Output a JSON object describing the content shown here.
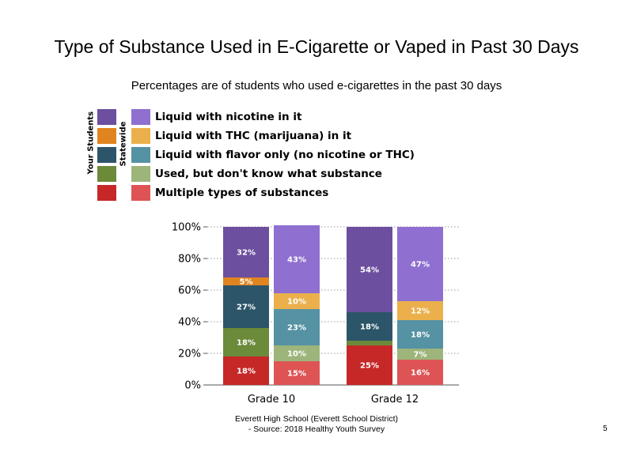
{
  "chart_data": {
    "type": "bar",
    "stacked": true,
    "title": "Type of Substance Used in E-Cigarette or Vaped in Past 30 Days",
    "subtitle": "Percentages are of students who used e-cigarettes in the past 30 days",
    "ylim": [
      0,
      100
    ],
    "yticks": [
      "0%",
      "20%",
      "40%",
      "60%",
      "80%",
      "100%"
    ],
    "grid": true,
    "legend_position": "top-left",
    "legend_group_labels": [
      "Your Students",
      "Statewide"
    ],
    "categories": [
      "Grade 10",
      "Grade 12"
    ],
    "groups": [
      "Your Students",
      "Statewide"
    ],
    "series": [
      {
        "name": "Multiple types of substances",
        "colors": [
          "#c62828",
          "#de5454"
        ],
        "values": [
          [
            18,
            15
          ],
          [
            25,
            16
          ]
        ],
        "labels": [
          [
            "18%",
            "15%"
          ],
          [
            "25%",
            "16%"
          ]
        ]
      },
      {
        "name": "Used, but don't know what substance",
        "colors": [
          "#6b8a3a",
          "#9db57b"
        ],
        "values": [
          [
            18,
            10
          ],
          [
            3,
            7
          ]
        ],
        "labels": [
          [
            "18%",
            "10%"
          ],
          [
            "",
            "7%"
          ]
        ]
      },
      {
        "name": "Liquid with flavor only (no nicotine or THC)",
        "colors": [
          "#2c5569",
          "#5592a3"
        ],
        "values": [
          [
            27,
            23
          ],
          [
            18,
            18
          ]
        ],
        "labels": [
          [
            "27%",
            "23%"
          ],
          [
            "18%",
            "18%"
          ]
        ]
      },
      {
        "name": "Liquid with THC (marijuana) in it",
        "colors": [
          "#e0841f",
          "#ebb04c"
        ],
        "values": [
          [
            5,
            10
          ],
          [
            0,
            12
          ]
        ],
        "labels": [
          [
            "5%",
            "10%"
          ],
          [
            "",
            "12%"
          ]
        ]
      },
      {
        "name": "Liquid with nicotine in it",
        "colors": [
          "#6c4f9e",
          "#8f6fd0"
        ],
        "values": [
          [
            32,
            43
          ],
          [
            54,
            47
          ]
        ],
        "labels": [
          [
            "32%",
            "43%"
          ],
          [
            "54%",
            "47%"
          ]
        ]
      }
    ]
  },
  "footer": {
    "line1": "Everett High School (Everett School District)",
    "line2": "- Source: 2018 Healthy Youth Survey"
  },
  "page_number": "5"
}
